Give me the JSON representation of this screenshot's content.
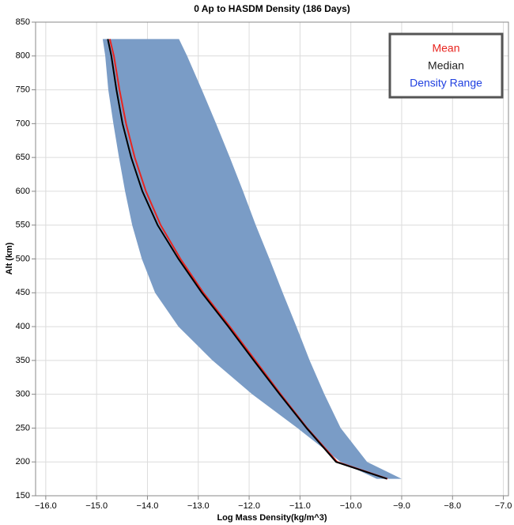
{
  "chart_data": {
    "type": "line",
    "title": "0 Ap to HASDM Density (186 Days)",
    "x_label": "Log Mass Density(kg/m^3)",
    "y_label": "Alt (km)",
    "y": [
      175,
      200,
      250,
      300,
      350,
      400,
      450,
      500,
      550,
      600,
      650,
      700,
      750,
      800,
      825
    ],
    "series": [
      {
        "name": "Mean",
        "color": "#e8251f",
        "values": [
          -9.28,
          -10.27,
          -10.86,
          -11.38,
          -11.88,
          -12.38,
          -12.9,
          -13.35,
          -13.74,
          -14.03,
          -14.25,
          -14.42,
          -14.55,
          -14.66,
          -14.74
        ]
      },
      {
        "name": "Median",
        "color": "#000000",
        "values": [
          -9.29,
          -10.29,
          -10.87,
          -11.4,
          -11.91,
          -12.41,
          -12.93,
          -13.39,
          -13.8,
          -14.1,
          -14.32,
          -14.49,
          -14.61,
          -14.71,
          -14.78
        ]
      },
      {
        "name": "Density Range",
        "type": "band",
        "color": "#7a9cc6",
        "lower": [
          -9.49,
          -10.2,
          -11.05,
          -11.94,
          -12.72,
          -13.39,
          -13.85,
          -14.11,
          -14.3,
          -14.44,
          -14.56,
          -14.67,
          -14.77,
          -14.83,
          -14.88
        ],
        "upper": [
          -9.0,
          -9.68,
          -10.2,
          -10.52,
          -10.81,
          -11.07,
          -11.34,
          -11.6,
          -11.87,
          -12.12,
          -12.38,
          -12.65,
          -12.93,
          -13.22,
          -13.38
        ]
      }
    ],
    "legend_colors": [
      "#e8251f",
      "#222222",
      "#1f3fe0"
    ],
    "legend_position": "upper right",
    "xlim": [
      -16.2,
      -6.9
    ],
    "xticks": [
      {
        "value": -16,
        "label": "−16.0"
      },
      {
        "value": -15,
        "label": "−15.0"
      },
      {
        "value": -14,
        "label": "−14.0"
      },
      {
        "value": -13,
        "label": "−13.0"
      },
      {
        "value": -12,
        "label": "−12.0"
      },
      {
        "value": -11,
        "label": "−11.0"
      },
      {
        "value": -10,
        "label": "−10.0"
      },
      {
        "value": -9,
        "label": "−9.0"
      },
      {
        "value": -8,
        "label": "−8.0"
      },
      {
        "value": -7,
        "label": "−7.0"
      }
    ],
    "ylim": [
      150,
      850
    ],
    "yticks": [
      150,
      200,
      250,
      300,
      350,
      400,
      450,
      500,
      550,
      600,
      650,
      700,
      750,
      800,
      850
    ],
    "grid": true
  }
}
